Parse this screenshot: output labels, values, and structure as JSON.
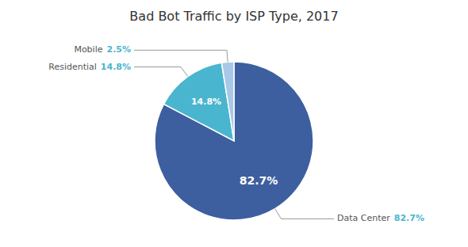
{
  "chart_data": {
    "type": "pie",
    "title": "Bad Bot Traffic by ISP Type, 2017",
    "categories": [
      "Data Center",
      "Residential",
      "Mobile"
    ],
    "values": [
      82.7,
      14.8,
      2.5
    ],
    "value_labels": [
      "82.7%",
      "14.8%",
      "2.5%"
    ],
    "colors": [
      "#3d5fa0",
      "#4ab5ce",
      "#a8c8e8"
    ],
    "data_labels": true
  }
}
